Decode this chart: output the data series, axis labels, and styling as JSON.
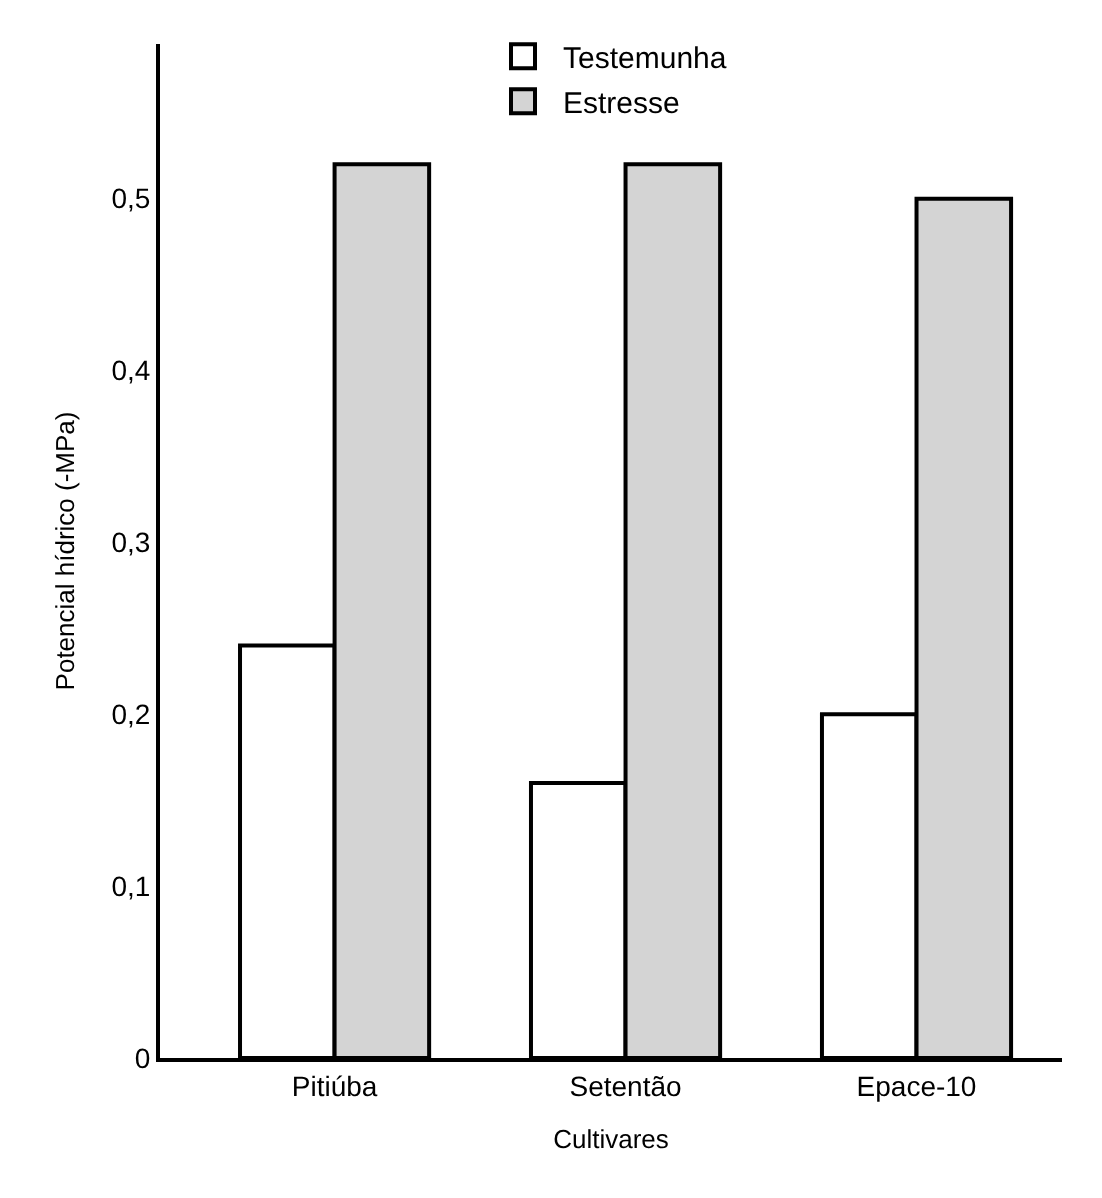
{
  "chart_data": {
    "type": "bar",
    "xlabel": "Cultivares",
    "ylabel": "Potencial hídrico (-MPa)",
    "categories": [
      "Pitiúba",
      "Setentão",
      "Epace-10"
    ],
    "series": [
      {
        "name": "Testemunha",
        "color": "#ffffff",
        "values": [
          0.24,
          0.16,
          0.2
        ]
      },
      {
        "name": "Estresse",
        "color": "#d4d4d4",
        "values": [
          0.52,
          0.52,
          0.5
        ]
      }
    ],
    "ylim": [
      0,
      0.59
    ],
    "yticks": [
      0,
      {
        "value": 0.1,
        "label": "0,1"
      },
      {
        "value": 0.2,
        "label": "0,2"
      },
      {
        "value": 0.3,
        "label": "0,3"
      },
      {
        "value": 0.4,
        "label": "0,4"
      },
      {
        "value": 0.5,
        "label": "0,5"
      }
    ],
    "legend": "top"
  }
}
